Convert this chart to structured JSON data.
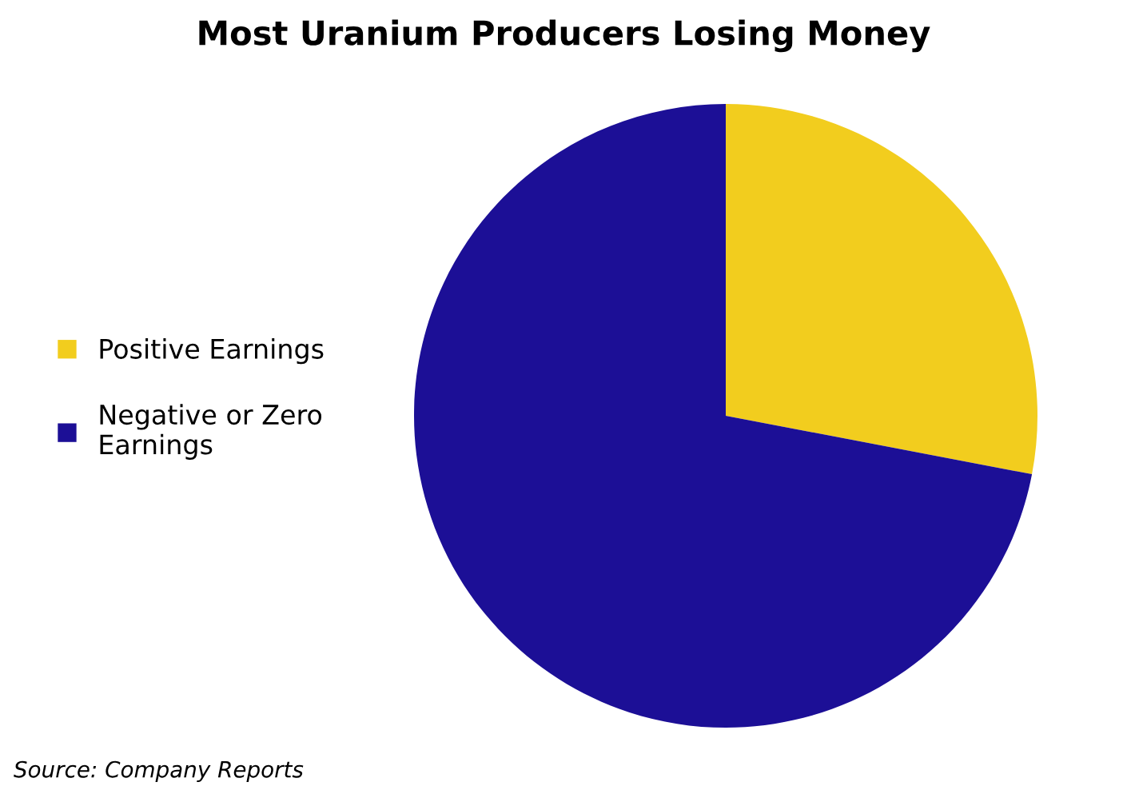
{
  "chart_data": {
    "type": "pie",
    "title": "Most Uranium Producers Losing Money",
    "categories": [
      "Positive Earnings",
      "Negative or Zero Earnings"
    ],
    "values": [
      28,
      72
    ],
    "colors": [
      "#f2cd1e",
      "#1c0f96"
    ],
    "legend": "left",
    "annotations": [
      "Source: Company Reports"
    ]
  }
}
